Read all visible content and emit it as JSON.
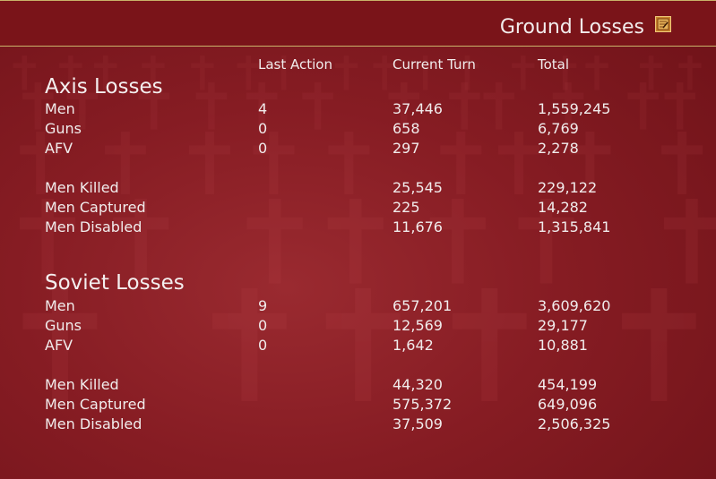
{
  "header": {
    "title": "Ground Losses",
    "icon": "notepad-icon"
  },
  "columns": {
    "last_action": "Last Action",
    "current_turn": "Current Turn",
    "total": "Total"
  },
  "axis": {
    "title": "Axis Losses",
    "rows": [
      {
        "label": "Men",
        "last": "4",
        "current": "37,446",
        "total": "1,559,245"
      },
      {
        "label": "Guns",
        "last": "0",
        "current": "658",
        "total": "6,769"
      },
      {
        "label": "AFV",
        "last": "0",
        "current": "297",
        "total": "2,278"
      },
      {
        "label": "Men Killed",
        "last": "",
        "current": "25,545",
        "total": "229,122"
      },
      {
        "label": "Men Captured",
        "last": "",
        "current": "225",
        "total": "14,282"
      },
      {
        "label": "Men Disabled",
        "last": "",
        "current": "11,676",
        "total": "1,315,841"
      }
    ]
  },
  "soviet": {
    "title": "Soviet Losses",
    "rows": [
      {
        "label": "Men",
        "last": "9",
        "current": "657,201",
        "total": "3,609,620"
      },
      {
        "label": "Guns",
        "last": "0",
        "current": "12,569",
        "total": "29,177"
      },
      {
        "label": "AFV",
        "last": "0",
        "current": "1,642",
        "total": "10,881"
      },
      {
        "label": "Men Killed",
        "last": "",
        "current": "44,320",
        "total": "454,199"
      },
      {
        "label": "Men Captured",
        "last": "",
        "current": "575,372",
        "total": "649,096"
      },
      {
        "label": "Men Disabled",
        "last": "",
        "current": "37,509",
        "total": "2,506,325"
      }
    ]
  }
}
